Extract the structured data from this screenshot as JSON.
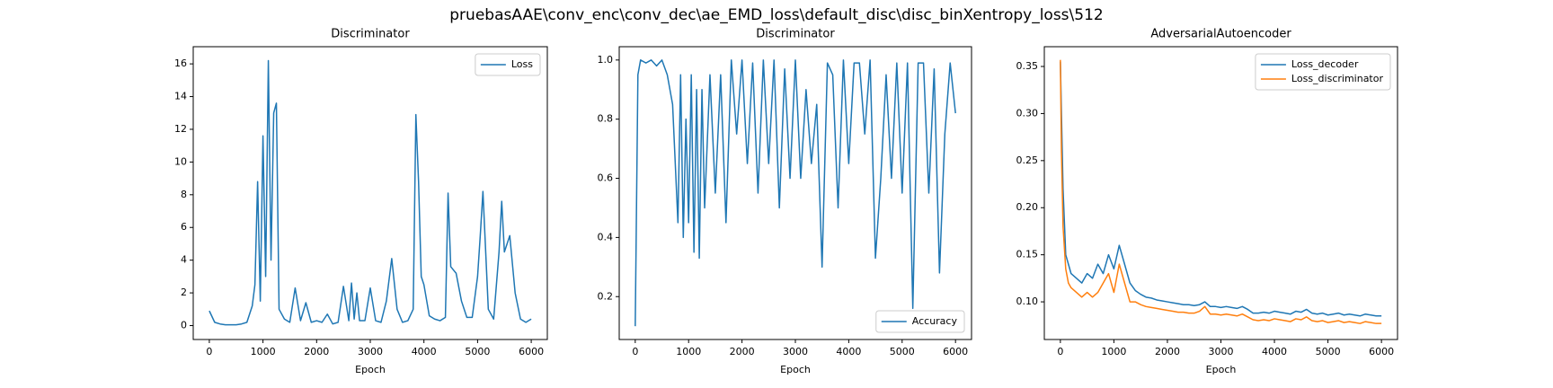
{
  "title": "pruebasAAE\\conv_enc\\conv_dec\\ae_EMD_loss\\default_disc\\disc_binXentropy_loss\\512",
  "chart_data": [
    {
      "type": "line",
      "title": "Discriminator",
      "xlabel": "Epoch",
      "legend": "upper right",
      "x": [
        0,
        100,
        200,
        300,
        400,
        500,
        600,
        700,
        800,
        850,
        900,
        950,
        1000,
        1050,
        1100,
        1150,
        1200,
        1250,
        1300,
        1400,
        1500,
        1600,
        1700,
        1800,
        1900,
        2000,
        2100,
        2200,
        2300,
        2400,
        2500,
        2600,
        2650,
        2700,
        2750,
        2800,
        2900,
        3000,
        3100,
        3200,
        3300,
        3400,
        3500,
        3600,
        3700,
        3800,
        3850,
        3900,
        3950,
        4000,
        4100,
        4200,
        4300,
        4400,
        4450,
        4500,
        4600,
        4700,
        4800,
        4900,
        5000,
        5050,
        5100,
        5200,
        5300,
        5400,
        5450,
        5500,
        5600,
        5700,
        5800,
        5900,
        6000
      ],
      "series": [
        {
          "name": "Loss",
          "color": "#1f77b4",
          "values": [
            0.9,
            0.2,
            0.1,
            0.05,
            0.05,
            0.05,
            0.1,
            0.2,
            1.2,
            2.5,
            8.8,
            1.5,
            11.6,
            3,
            16.2,
            4,
            13,
            13.6,
            1,
            0.4,
            0.2,
            2.3,
            0.3,
            1.4,
            0.2,
            0.3,
            0.2,
            0.7,
            0.1,
            0.2,
            2.4,
            0.3,
            2.6,
            0.4,
            2.0,
            0.3,
            0.3,
            2.3,
            0.3,
            0.2,
            1.5,
            4.1,
            1.0,
            0.2,
            0.3,
            1.0,
            12.9,
            8.8,
            3,
            2.5,
            0.6,
            0.4,
            0.3,
            0.5,
            8.1,
            3.6,
            3.2,
            1.5,
            0.5,
            0.5,
            3,
            5.5,
            8.2,
            1,
            0.4,
            4.5,
            7.6,
            4.5,
            5.5,
            2.0,
            0.4,
            0.2,
            0.4
          ]
        }
      ],
      "xlim": [
        -300,
        6300
      ],
      "xticks": [
        0,
        1000,
        2000,
        3000,
        4000,
        5000,
        6000
      ],
      "ylim": [
        -0.85,
        17.05
      ],
      "yticks": [
        0,
        2,
        4,
        6,
        8,
        10,
        12,
        14,
        16
      ]
    },
    {
      "type": "line",
      "title": "Discriminator",
      "xlabel": "Epoch",
      "legend": "lower right",
      "x": [
        0,
        50,
        100,
        200,
        300,
        400,
        500,
        600,
        700,
        800,
        850,
        900,
        950,
        1000,
        1050,
        1100,
        1150,
        1200,
        1250,
        1300,
        1400,
        1500,
        1600,
        1700,
        1800,
        1900,
        2000,
        2100,
        2200,
        2300,
        2400,
        2500,
        2600,
        2700,
        2800,
        2900,
        3000,
        3100,
        3200,
        3300,
        3400,
        3500,
        3600,
        3700,
        3800,
        3900,
        4000,
        4100,
        4200,
        4300,
        4400,
        4500,
        4600,
        4700,
        4800,
        4900,
        5000,
        5100,
        5200,
        5300,
        5400,
        5500,
        5600,
        5700,
        5800,
        5900,
        6000
      ],
      "series": [
        {
          "name": "Accuracy",
          "color": "#1f77b4",
          "values": [
            0.1,
            0.95,
            1.0,
            0.99,
            1.0,
            0.98,
            1.0,
            0.95,
            0.85,
            0.45,
            0.95,
            0.4,
            0.8,
            0.45,
            0.95,
            0.35,
            0.9,
            0.33,
            0.9,
            0.5,
            0.95,
            0.55,
            0.95,
            0.45,
            1.0,
            0.75,
            1.0,
            0.65,
            0.99,
            0.55,
            1.0,
            0.65,
            1.0,
            0.5,
            0.97,
            0.6,
            1.0,
            0.6,
            0.9,
            0.65,
            0.85,
            0.3,
            0.99,
            0.95,
            0.5,
            1.0,
            0.65,
            0.99,
            0.99,
            0.75,
            1.0,
            0.33,
            0.6,
            0.95,
            0.6,
            0.99,
            0.55,
            0.99,
            0.16,
            0.99,
            0.99,
            0.55,
            0.97,
            0.28,
            0.75,
            0.99,
            0.82
          ]
        }
      ],
      "xlim": [
        -300,
        6300
      ],
      "xticks": [
        0,
        1000,
        2000,
        3000,
        4000,
        5000,
        6000
      ],
      "ylim": [
        0.055,
        1.045
      ],
      "yticks": [
        0.2,
        0.4,
        0.6,
        0.8,
        {
          "value": 1,
          "label": "1.0"
        }
      ]
    },
    {
      "type": "line",
      "title": "AdversarialAutoencoder",
      "xlabel": "Epoch",
      "legend": "upper right",
      "x": [
        0,
        20,
        50,
        100,
        150,
        200,
        300,
        400,
        500,
        600,
        700,
        800,
        900,
        1000,
        1100,
        1200,
        1300,
        1400,
        1500,
        1600,
        1700,
        1800,
        1900,
        2000,
        2100,
        2200,
        2300,
        2400,
        2500,
        2600,
        2700,
        2800,
        2900,
        3000,
        3100,
        3200,
        3300,
        3400,
        3500,
        3600,
        3700,
        3800,
        3900,
        4000,
        4100,
        4200,
        4300,
        4400,
        4500,
        4600,
        4700,
        4800,
        4900,
        5000,
        5100,
        5200,
        5300,
        5400,
        5500,
        5600,
        5700,
        5800,
        5900,
        6000
      ],
      "series": [
        {
          "name": "Loss_decoder",
          "color": "#1f77b4",
          "values": [
            0.355,
            0.3,
            0.22,
            0.15,
            0.14,
            0.13,
            0.125,
            0.12,
            0.13,
            0.125,
            0.14,
            0.13,
            0.15,
            0.135,
            0.16,
            0.14,
            0.12,
            0.112,
            0.108,
            0.105,
            0.104,
            0.102,
            0.101,
            0.1,
            0.099,
            0.098,
            0.097,
            0.097,
            0.096,
            0.097,
            0.1,
            0.095,
            0.095,
            0.094,
            0.095,
            0.094,
            0.093,
            0.095,
            0.092,
            0.088,
            0.088,
            0.089,
            0.088,
            0.09,
            0.089,
            0.088,
            0.087,
            0.09,
            0.089,
            0.092,
            0.088,
            0.087,
            0.088,
            0.086,
            0.087,
            0.088,
            0.086,
            0.087,
            0.086,
            0.085,
            0.087,
            0.086,
            0.085,
            0.085
          ]
        },
        {
          "name": "Loss_discriminator",
          "color": "#ff7f0e",
          "values": [
            0.357,
            0.26,
            0.18,
            0.135,
            0.12,
            0.115,
            0.11,
            0.105,
            0.11,
            0.105,
            0.11,
            0.12,
            0.13,
            0.11,
            0.14,
            0.12,
            0.1,
            0.1,
            0.097,
            0.095,
            0.094,
            0.093,
            0.092,
            0.091,
            0.09,
            0.089,
            0.089,
            0.088,
            0.088,
            0.09,
            0.095,
            0.087,
            0.087,
            0.086,
            0.087,
            0.086,
            0.085,
            0.087,
            0.084,
            0.081,
            0.08,
            0.081,
            0.08,
            0.082,
            0.081,
            0.08,
            0.079,
            0.082,
            0.081,
            0.084,
            0.08,
            0.079,
            0.08,
            0.078,
            0.079,
            0.08,
            0.078,
            0.079,
            0.078,
            0.077,
            0.079,
            0.078,
            0.077,
            0.077
          ]
        }
      ],
      "xlim": [
        -300,
        6300
      ],
      "xticks": [
        0,
        1000,
        2000,
        3000,
        4000,
        5000,
        6000
      ],
      "ylim": [
        0.06,
        0.371
      ],
      "yticks": [
        {
          "value": 0.1,
          "label": "0.10"
        },
        {
          "value": 0.15,
          "label": "0.15"
        },
        {
          "value": 0.2,
          "label": "0.20"
        },
        {
          "value": 0.25,
          "label": "0.25"
        },
        {
          "value": 0.3,
          "label": "0.30"
        },
        {
          "value": 0.35,
          "label": "0.35"
        }
      ]
    }
  ]
}
